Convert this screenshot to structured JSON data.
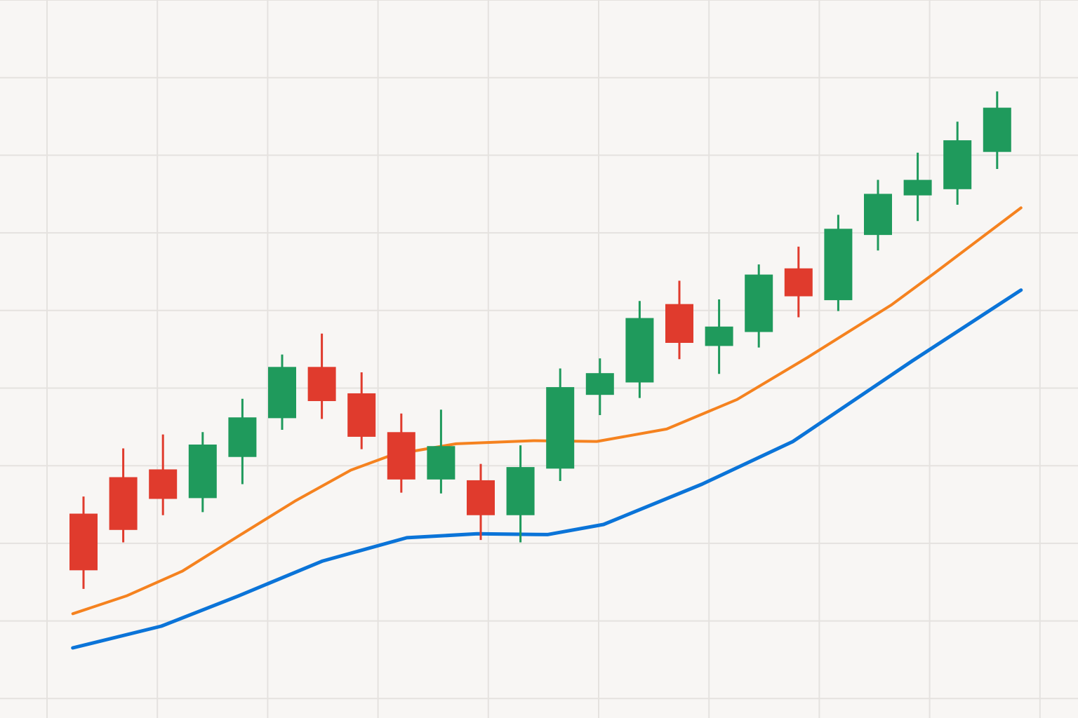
{
  "chart_data": {
    "type": "candlestick",
    "title": "",
    "xlabel": "",
    "ylabel": "",
    "grid": true,
    "legend": "none",
    "ylim": [
      0,
      90
    ],
    "xlim": [
      -0.1,
      25.6
    ],
    "colors": {
      "background": "#f8f6f4",
      "grid": "#e5e2df",
      "up": "#1f9a5c",
      "down": "#e03b2d",
      "line1": "#f5821f",
      "line2": "#0b74d8"
    },
    "candles": [
      {
        "i": 1,
        "open": 23.8,
        "close": 16.5,
        "high": 26.0,
        "low": 14.1
      },
      {
        "i": 2,
        "open": 28.5,
        "close": 21.7,
        "high": 32.2,
        "low": 20.1
      },
      {
        "i": 3,
        "open": 29.5,
        "close": 25.7,
        "high": 34.0,
        "low": 23.6
      },
      {
        "i": 4,
        "open": 25.8,
        "close": 32.7,
        "high": 34.3,
        "low": 24.0
      },
      {
        "i": 5,
        "open": 31.1,
        "close": 36.2,
        "high": 38.6,
        "low": 27.6
      },
      {
        "i": 6,
        "open": 36.1,
        "close": 42.7,
        "high": 44.3,
        "low": 34.6
      },
      {
        "i": 7,
        "open": 42.7,
        "close": 38.3,
        "high": 47.0,
        "low": 36.0
      },
      {
        "i": 8,
        "open": 39.3,
        "close": 33.7,
        "high": 42.0,
        "low": 32.1
      },
      {
        "i": 9,
        "open": 34.3,
        "close": 28.2,
        "high": 36.7,
        "low": 26.5
      },
      {
        "i": 10,
        "open": 28.2,
        "close": 32.5,
        "high": 37.2,
        "low": 26.4
      },
      {
        "i": 11,
        "open": 28.1,
        "close": 23.6,
        "high": 30.2,
        "low": 20.4
      },
      {
        "i": 12,
        "open": 23.6,
        "close": 29.8,
        "high": 32.6,
        "low": 20.1
      },
      {
        "i": 13,
        "open": 29.6,
        "close": 40.1,
        "high": 42.5,
        "low": 28.0
      },
      {
        "i": 14,
        "open": 39.1,
        "close": 41.9,
        "high": 43.8,
        "low": 36.5
      },
      {
        "i": 15,
        "open": 40.7,
        "close": 49.0,
        "high": 51.2,
        "low": 38.7
      },
      {
        "i": 16,
        "open": 50.8,
        "close": 45.8,
        "high": 53.8,
        "low": 43.7
      },
      {
        "i": 17,
        "open": 45.4,
        "close": 47.9,
        "high": 51.4,
        "low": 41.8
      },
      {
        "i": 18,
        "open": 47.2,
        "close": 54.6,
        "high": 55.9,
        "low": 45.2
      },
      {
        "i": 19,
        "open": 55.4,
        "close": 51.8,
        "high": 58.2,
        "low": 49.1
      },
      {
        "i": 20,
        "open": 51.3,
        "close": 60.5,
        "high": 62.3,
        "low": 49.9
      },
      {
        "i": 21,
        "open": 59.7,
        "close": 65.0,
        "high": 66.8,
        "low": 57.7
      },
      {
        "i": 22,
        "open": 64.8,
        "close": 66.8,
        "high": 70.3,
        "low": 61.5
      },
      {
        "i": 23,
        "open": 65.6,
        "close": 71.9,
        "high": 74.3,
        "low": 63.6
      },
      {
        "i": 24,
        "open": 70.4,
        "close": 76.1,
        "high": 78.2,
        "low": 68.2
      }
    ],
    "series": [
      {
        "type": "line",
        "color": "#f5821f",
        "points": [
          [
            0.73,
            10.9
          ],
          [
            2.08,
            13.2
          ],
          [
            3.49,
            16.4
          ],
          [
            4.9,
            20.9
          ],
          [
            6.32,
            25.4
          ],
          [
            7.73,
            29.4
          ],
          [
            8.79,
            31.4
          ],
          [
            10.38,
            32.8
          ],
          [
            12.33,
            33.2
          ],
          [
            13.92,
            33.1
          ],
          [
            15.68,
            34.7
          ],
          [
            17.45,
            38.5
          ],
          [
            19.22,
            43.9
          ],
          [
            21.34,
            50.7
          ],
          [
            22.4,
            54.7
          ],
          [
            24.6,
            63.2
          ]
        ]
      },
      {
        "type": "line",
        "color": "#0b74d8",
        "points": [
          [
            0.73,
            6.5
          ],
          [
            2.96,
            9.3
          ],
          [
            4.9,
            13.2
          ],
          [
            7.02,
            17.7
          ],
          [
            9.14,
            20.7
          ],
          [
            10.91,
            21.2
          ],
          [
            12.68,
            21.1
          ],
          [
            14.09,
            22.4
          ],
          [
            16.57,
            27.6
          ],
          [
            18.86,
            33.1
          ],
          [
            21.87,
            43.5
          ],
          [
            24.6,
            52.6
          ]
        ]
      }
    ]
  }
}
